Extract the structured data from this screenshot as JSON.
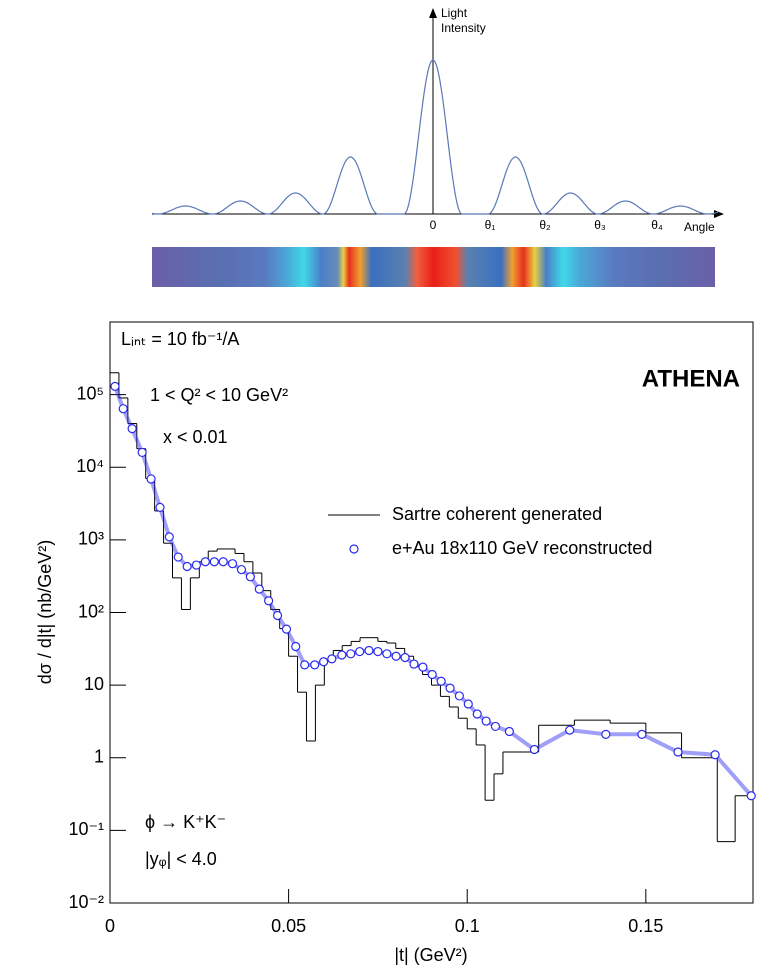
{
  "diagram": {
    "y_label": [
      "Light",
      "Intensity"
    ],
    "x_labels": [
      "0",
      "θ₁",
      "θ₂",
      "θ₃",
      "θ₄"
    ],
    "x_label": "Angle"
  },
  "chart_data": {
    "type": "scatter",
    "log_y": true,
    "x_label": "|t| (GeV²)",
    "y_label": "dσ / d|t|  (nb/GeV²)",
    "annotations": [
      "Lᵢₙₜ = 10 fb⁻¹/A",
      "1 < Q² < 10 GeV²",
      "x < 0.01",
      "ATHENA",
      "ϕ → K⁺K⁻",
      "|yᵩ| < 4.0"
    ],
    "xlim": [
      0,
      0.18
    ],
    "xticks": [
      0,
      0.05,
      0.1,
      0.15
    ],
    "ylim": [
      0.01,
      1000000
    ],
    "yticks": [
      {
        "value": 0.01,
        "label": "10⁻²"
      },
      {
        "value": 0.1,
        "label": "10⁻¹"
      },
      1,
      10,
      {
        "value": 100,
        "label": "10²"
      },
      {
        "value": 1000,
        "label": "10³"
      },
      {
        "value": 10000,
        "label": "10⁴"
      },
      {
        "value": 100000,
        "label": "10⁵"
      }
    ],
    "series": [
      {
        "name": "Sartre coherent generated",
        "type": "step",
        "color": "#000000",
        "bins": [
          0,
          0.0025,
          0.005,
          0.0075,
          0.01,
          0.0125,
          0.015,
          0.0175,
          0.02,
          0.0225,
          0.025,
          0.0275,
          0.03,
          0.0325,
          0.035,
          0.0375,
          0.04,
          0.0425,
          0.045,
          0.0475,
          0.05,
          0.0525,
          0.055,
          0.0575,
          0.06,
          0.0625,
          0.065,
          0.0675,
          0.07,
          0.0725,
          0.075,
          0.0775,
          0.08,
          0.0825,
          0.085,
          0.0875,
          0.09,
          0.0925,
          0.095,
          0.0975,
          0.1,
          0.1025,
          0.105,
          0.1075,
          0.11,
          0.12,
          0.13,
          0.14,
          0.15,
          0.16,
          0.17,
          0.175,
          0.18
        ],
        "values": [
          200000,
          90000,
          40000,
          18000,
          7000,
          2500,
          900,
          300,
          110,
          300,
          500,
          700,
          750,
          750,
          650,
          500,
          350,
          200,
          110,
          60,
          25,
          8,
          1.7,
          10,
          22,
          30,
          35,
          40,
          45,
          45,
          40,
          38,
          32,
          25,
          18,
          14,
          10,
          7,
          5,
          3.5,
          2.5,
          1.5,
          0.26,
          0.6,
          1.2,
          2.8,
          3.3,
          3.0,
          2.2,
          1.0,
          0.07,
          0.3
        ]
      },
      {
        "name": "e+Au 18x110 GeV reconstructed",
        "type": "scatter",
        "color": "#2a2aee",
        "x": [
          0.0014,
          0.0037,
          0.0062,
          0.009,
          0.0115,
          0.014,
          0.0166,
          0.0191,
          0.0216,
          0.0242,
          0.0267,
          0.0292,
          0.0317,
          0.0343,
          0.0368,
          0.0393,
          0.0418,
          0.0444,
          0.0469,
          0.0494,
          0.052,
          0.0545,
          0.0573,
          0.0598,
          0.0621,
          0.0649,
          0.0674,
          0.0699,
          0.0725,
          0.075,
          0.0775,
          0.0801,
          0.0826,
          0.0851,
          0.0876,
          0.0902,
          0.0927,
          0.0952,
          0.0978,
          0.1003,
          0.1028,
          0.1053,
          0.1079,
          0.1118,
          0.1188,
          0.1287,
          0.1388,
          0.1489,
          0.159,
          0.1694,
          0.1795
        ],
        "values": [
          130000,
          64000,
          34000,
          16000,
          6900,
          2800,
          1100,
          580,
          430,
          450,
          500,
          500,
          500,
          470,
          390,
          310,
          210,
          145,
          91,
          59,
          34,
          19,
          19,
          21,
          23,
          26,
          27,
          29,
          30,
          29,
          27,
          25,
          24,
          19.5,
          17.7,
          14,
          11.3,
          9.1,
          7.1,
          5.5,
          4.0,
          3.2,
          2.7,
          2.3,
          1.3,
          2.4,
          2.1,
          2.1,
          1.2,
          1.1,
          0.3
        ]
      }
    ]
  }
}
